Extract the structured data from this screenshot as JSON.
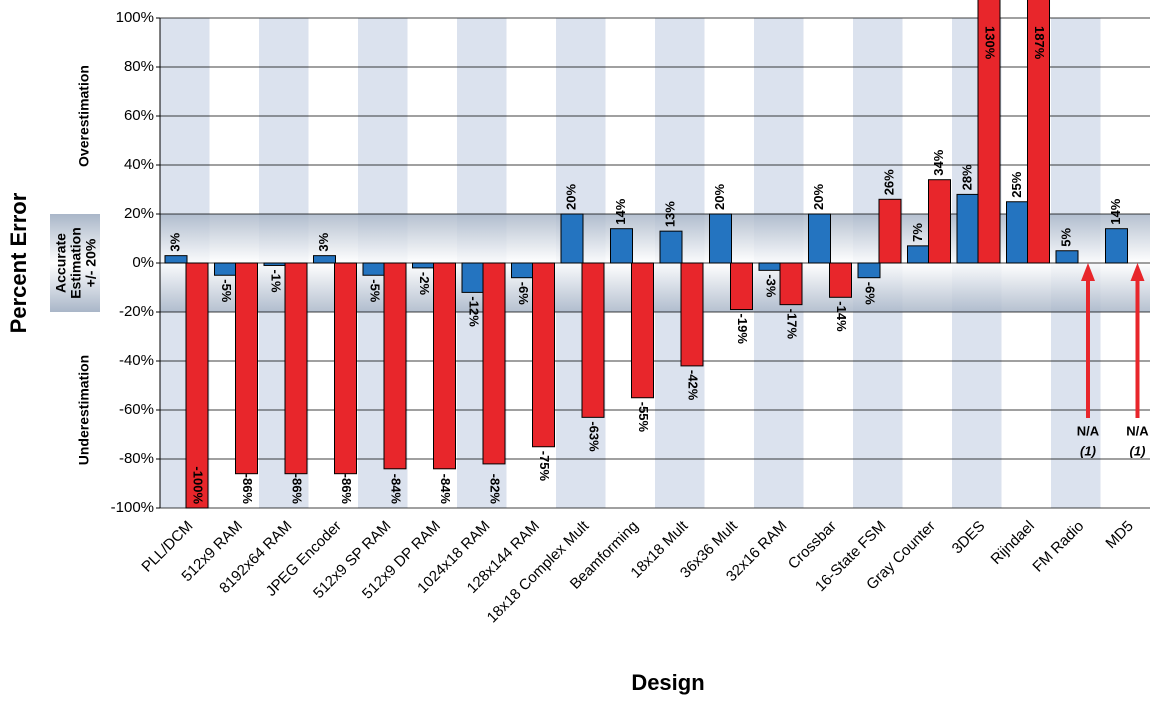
{
  "chart_data": {
    "type": "bar",
    "x_label": "Design",
    "y_label": "Percent Error",
    "over_label": "Overestimation",
    "under_label": "Underestimation",
    "band_label": [
      "Accurate",
      "Estimation",
      "+/- 20%"
    ],
    "band": [
      -20,
      20
    ],
    "categories": [
      "PLL/DCM",
      "512x9 RAM",
      "8192x64 RAM",
      "JPEG Encoder",
      "512x9 SP RAM",
      "512x9 DP RAM",
      "1024x18 RAM",
      "128x144 RAM",
      "18x18 Complex Mult",
      "Beamforming",
      "18x18 Mult",
      "36x36 Mult",
      "32x16 RAM",
      "Crossbar",
      "16-State FSM",
      "Gray Counter",
      "3DES",
      "Rijndael",
      "FM Radio",
      "MD5"
    ],
    "series": [
      {
        "color": "#2474c0",
        "values": [
          3,
          -5,
          -1,
          3,
          -5,
          -2,
          -12,
          -6,
          20,
          14,
          13,
          20,
          -3,
          20,
          -6,
          7,
          28,
          25,
          5,
          14
        ],
        "value_labels": [
          "3%",
          "-5%",
          "-1%",
          "3%",
          "-5%",
          "-2%",
          "-12%",
          "-6%",
          "20%",
          "14%",
          "13%",
          "20%",
          "-3%",
          "20%",
          "-6%",
          "7%",
          "28%",
          "25%",
          "5%",
          "14%"
        ]
      },
      {
        "color": "#e8262b",
        "values": [
          -100,
          -86,
          -86,
          -86,
          -84,
          -84,
          -82,
          -75,
          -63,
          -55,
          -42,
          -19,
          -17,
          -14,
          26,
          34,
          130,
          187,
          null,
          null
        ],
        "value_labels": [
          "-100%",
          "-86%",
          "-86%",
          "-86%",
          "-84%",
          "-84%",
          "-82%",
          "-75%",
          "-63%",
          "-55%",
          "-42%",
          "-19%",
          "-17%",
          "-14%",
          "26%",
          "34%",
          "130%",
          "187%",
          null,
          null
        ]
      }
    ],
    "annotations": [
      {
        "x": "FM Radio",
        "text": "N/A",
        "note": "(1)"
      },
      {
        "x": "MD5",
        "text": "N/A",
        "note": "(1)"
      }
    ],
    "ylim": [
      -100,
      100
    ],
    "yticks": [
      {
        "value": -100,
        "label": "-100%"
      },
      {
        "value": -80,
        "label": "-80%"
      },
      {
        "value": -60,
        "label": "-60%"
      },
      {
        "value": -40,
        "label": "-40%"
      },
      {
        "value": -20,
        "label": "-20%"
      },
      {
        "value": 0,
        "label": "0%"
      },
      {
        "value": 20,
        "label": "20%"
      },
      {
        "value": 40,
        "label": "40%"
      },
      {
        "value": 60,
        "label": "60%"
      },
      {
        "value": 80,
        "label": "80%"
      },
      {
        "value": 100,
        "label": "100%"
      }
    ],
    "grid": true
  }
}
